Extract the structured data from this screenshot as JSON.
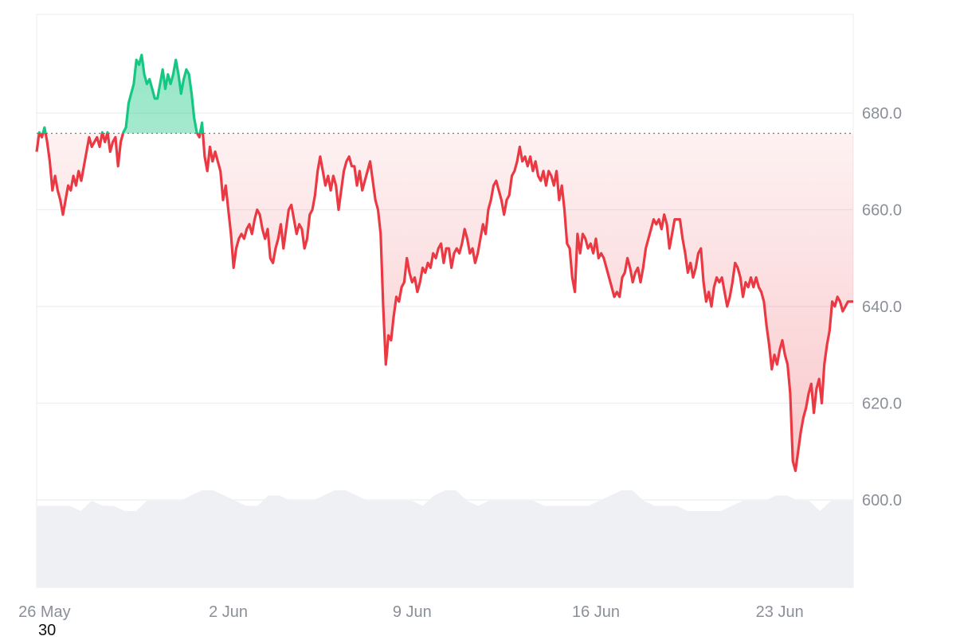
{
  "colors": {
    "up": "#16c784",
    "down": "#ea3943",
    "up_fill": "#16c784",
    "down_fill": "#ea3943",
    "grid": "#eceef1",
    "volume": "#eef0f3",
    "baseline": "#777777",
    "axis_text": "#8a8f98"
  },
  "footer_text": "30",
  "chart_data": {
    "type": "line",
    "ylim": [
      582,
      702
    ],
    "baseline": 675.8,
    "grid": true,
    "yticks": [
      600,
      620,
      640,
      660,
      680
    ],
    "ytick_labels": [
      "600.0",
      "620.0",
      "640.0",
      "660.0",
      "680.0"
    ],
    "xtick_labels": [
      "26 May",
      "2 Jun",
      "9 Jun",
      "16 Jun",
      "23 Jun"
    ],
    "xticks_day": [
      0,
      7,
      14,
      21,
      28
    ],
    "x_range_days": [
      -0.3,
      30.8
    ],
    "series": [
      {
        "points": [
          [
            -0.3,
            672
          ],
          [
            -0.2,
            676
          ],
          [
            -0.1,
            675
          ],
          [
            0,
            677
          ],
          [
            0.1,
            674
          ],
          [
            0.2,
            670
          ],
          [
            0.3,
            664
          ],
          [
            0.4,
            667
          ],
          [
            0.5,
            664
          ],
          [
            0.6,
            662
          ],
          [
            0.7,
            659
          ],
          [
            0.8,
            662
          ],
          [
            0.9,
            665
          ],
          [
            1.0,
            664
          ],
          [
            1.1,
            667
          ],
          [
            1.2,
            665
          ],
          [
            1.3,
            668
          ],
          [
            1.4,
            666
          ],
          [
            1.5,
            669
          ],
          [
            1.6,
            672
          ],
          [
            1.7,
            675
          ],
          [
            1.8,
            673
          ],
          [
            1.9,
            674
          ],
          [
            2.0,
            675
          ],
          [
            2.1,
            673
          ],
          [
            2.2,
            676
          ],
          [
            2.3,
            674
          ],
          [
            2.4,
            676
          ],
          [
            2.5,
            672
          ],
          [
            2.6,
            674
          ],
          [
            2.7,
            675
          ],
          [
            2.8,
            669
          ],
          [
            2.9,
            674
          ],
          [
            3.0,
            676
          ],
          [
            3.1,
            677
          ],
          [
            3.2,
            682
          ],
          [
            3.3,
            684
          ],
          [
            3.4,
            686
          ],
          [
            3.5,
            691
          ],
          [
            3.6,
            690
          ],
          [
            3.7,
            692
          ],
          [
            3.8,
            688
          ],
          [
            3.9,
            686
          ],
          [
            4.0,
            687
          ],
          [
            4.1,
            685
          ],
          [
            4.2,
            683
          ],
          [
            4.3,
            683
          ],
          [
            4.4,
            686
          ],
          [
            4.5,
            689
          ],
          [
            4.6,
            685
          ],
          [
            4.7,
            688
          ],
          [
            4.8,
            686
          ],
          [
            4.9,
            688
          ],
          [
            5.0,
            691
          ],
          [
            5.1,
            688
          ],
          [
            5.2,
            684
          ],
          [
            5.3,
            687
          ],
          [
            5.4,
            689
          ],
          [
            5.5,
            688
          ],
          [
            5.6,
            684
          ],
          [
            5.7,
            679
          ],
          [
            5.8,
            676
          ],
          [
            5.9,
            675
          ],
          [
            6.0,
            678
          ],
          [
            6.1,
            671
          ],
          [
            6.2,
            668
          ],
          [
            6.3,
            673
          ],
          [
            6.4,
            670
          ],
          [
            6.5,
            672
          ],
          [
            6.6,
            670
          ],
          [
            6.7,
            668
          ],
          [
            6.8,
            662
          ],
          [
            6.9,
            665
          ],
          [
            7.0,
            660
          ],
          [
            7.1,
            655
          ],
          [
            7.2,
            648
          ],
          [
            7.3,
            652
          ],
          [
            7.4,
            654
          ],
          [
            7.5,
            655
          ],
          [
            7.6,
            654
          ],
          [
            7.7,
            656
          ],
          [
            7.8,
            657
          ],
          [
            7.9,
            655
          ],
          [
            8.0,
            658
          ],
          [
            8.1,
            660
          ],
          [
            8.2,
            659
          ],
          [
            8.3,
            656
          ],
          [
            8.4,
            654
          ],
          [
            8.5,
            656
          ],
          [
            8.6,
            650
          ],
          [
            8.7,
            649
          ],
          [
            8.8,
            652
          ],
          [
            8.9,
            654
          ],
          [
            9.0,
            657
          ],
          [
            9.1,
            652
          ],
          [
            9.2,
            656
          ],
          [
            9.3,
            660
          ],
          [
            9.4,
            661
          ],
          [
            9.5,
            658
          ],
          [
            9.6,
            655
          ],
          [
            9.7,
            657
          ],
          [
            9.8,
            656
          ],
          [
            9.9,
            652
          ],
          [
            10.0,
            654
          ],
          [
            10.1,
            659
          ],
          [
            10.2,
            660
          ],
          [
            10.3,
            663
          ],
          [
            10.4,
            668
          ],
          [
            10.5,
            671
          ],
          [
            10.6,
            668
          ],
          [
            10.7,
            665
          ],
          [
            10.8,
            667
          ],
          [
            10.9,
            664
          ],
          [
            11.0,
            667
          ],
          [
            11.1,
            665
          ],
          [
            11.2,
            660
          ],
          [
            11.3,
            664
          ],
          [
            11.4,
            668
          ],
          [
            11.5,
            670
          ],
          [
            11.6,
            671
          ],
          [
            11.7,
            669
          ],
          [
            11.8,
            669
          ],
          [
            11.9,
            665
          ],
          [
            12.0,
            668
          ],
          [
            12.1,
            664
          ],
          [
            12.2,
            666
          ],
          [
            12.3,
            668
          ],
          [
            12.4,
            670
          ],
          [
            12.5,
            666
          ],
          [
            12.6,
            662
          ],
          [
            12.7,
            660
          ],
          [
            12.8,
            655
          ],
          [
            12.9,
            640
          ],
          [
            13.0,
            628
          ],
          [
            13.1,
            634
          ],
          [
            13.2,
            633
          ],
          [
            13.3,
            638
          ],
          [
            13.4,
            642
          ],
          [
            13.5,
            641
          ],
          [
            13.6,
            644
          ],
          [
            13.7,
            645
          ],
          [
            13.8,
            650
          ],
          [
            13.9,
            647
          ],
          [
            14.0,
            645
          ],
          [
            14.1,
            646
          ],
          [
            14.2,
            643
          ],
          [
            14.3,
            645
          ],
          [
            14.4,
            648
          ],
          [
            14.5,
            647
          ],
          [
            14.6,
            649
          ],
          [
            14.7,
            648
          ],
          [
            14.8,
            651
          ],
          [
            14.9,
            650
          ],
          [
            15.0,
            652
          ],
          [
            15.1,
            653
          ],
          [
            15.2,
            649
          ],
          [
            15.3,
            652
          ],
          [
            15.4,
            652
          ],
          [
            15.5,
            648
          ],
          [
            15.6,
            651
          ],
          [
            15.7,
            652
          ],
          [
            15.8,
            651
          ],
          [
            15.9,
            653
          ],
          [
            16.0,
            656
          ],
          [
            16.1,
            654
          ],
          [
            16.2,
            651
          ],
          [
            16.3,
            652
          ],
          [
            16.4,
            649
          ],
          [
            16.5,
            651
          ],
          [
            16.6,
            654
          ],
          [
            16.7,
            657
          ],
          [
            16.8,
            655
          ],
          [
            16.9,
            660
          ],
          [
            17.0,
            662
          ],
          [
            17.1,
            665
          ],
          [
            17.2,
            666
          ],
          [
            17.3,
            664
          ],
          [
            17.4,
            662
          ],
          [
            17.5,
            659
          ],
          [
            17.6,
            662
          ],
          [
            17.7,
            663
          ],
          [
            17.8,
            667
          ],
          [
            17.9,
            668
          ],
          [
            18.0,
            670
          ],
          [
            18.1,
            673
          ],
          [
            18.2,
            670
          ],
          [
            18.3,
            671
          ],
          [
            18.4,
            669
          ],
          [
            18.5,
            671
          ],
          [
            18.6,
            668
          ],
          [
            18.7,
            670
          ],
          [
            18.8,
            667
          ],
          [
            18.9,
            666
          ],
          [
            19.0,
            668
          ],
          [
            19.1,
            665
          ],
          [
            19.2,
            668
          ],
          [
            19.3,
            667
          ],
          [
            19.4,
            665
          ],
          [
            19.5,
            668
          ],
          [
            19.6,
            662
          ],
          [
            19.7,
            665
          ],
          [
            19.8,
            660
          ],
          [
            19.9,
            653
          ],
          [
            20.0,
            652
          ],
          [
            20.1,
            646
          ],
          [
            20.2,
            643
          ],
          [
            20.3,
            655
          ],
          [
            20.4,
            651
          ],
          [
            20.5,
            655
          ],
          [
            20.6,
            654
          ],
          [
            20.7,
            652
          ],
          [
            20.8,
            653
          ],
          [
            20.9,
            651
          ],
          [
            21.0,
            654
          ],
          [
            21.1,
            650
          ],
          [
            21.2,
            651
          ],
          [
            21.3,
            650
          ],
          [
            21.4,
            648
          ],
          [
            21.5,
            646
          ],
          [
            21.6,
            644
          ],
          [
            21.7,
            642
          ],
          [
            21.8,
            643
          ],
          [
            21.9,
            642
          ],
          [
            22.0,
            646
          ],
          [
            22.1,
            647
          ],
          [
            22.2,
            650
          ],
          [
            22.3,
            648
          ],
          [
            22.4,
            645
          ],
          [
            22.5,
            647
          ],
          [
            22.6,
            648
          ],
          [
            22.7,
            645
          ],
          [
            22.8,
            648
          ],
          [
            22.9,
            652
          ],
          [
            23.0,
            654
          ],
          [
            23.1,
            656
          ],
          [
            23.2,
            658
          ],
          [
            23.3,
            657
          ],
          [
            23.4,
            658
          ],
          [
            23.5,
            656
          ],
          [
            23.6,
            659
          ],
          [
            23.7,
            657
          ],
          [
            23.8,
            652
          ],
          [
            23.9,
            655
          ],
          [
            24.0,
            658
          ],
          [
            24.1,
            658
          ],
          [
            24.2,
            658
          ],
          [
            24.3,
            654
          ],
          [
            24.4,
            651
          ],
          [
            24.5,
            647
          ],
          [
            24.6,
            649
          ],
          [
            24.7,
            646
          ],
          [
            24.8,
            648
          ],
          [
            24.9,
            651
          ],
          [
            25.0,
            652
          ],
          [
            25.1,
            645
          ],
          [
            25.2,
            641
          ],
          [
            25.3,
            643
          ],
          [
            25.4,
            640
          ],
          [
            25.5,
            644
          ],
          [
            25.6,
            646
          ],
          [
            25.7,
            645
          ],
          [
            25.8,
            646
          ],
          [
            25.9,
            643
          ],
          [
            26.0,
            640
          ],
          [
            26.1,
            642
          ],
          [
            26.2,
            645
          ],
          [
            26.3,
            649
          ],
          [
            26.4,
            648
          ],
          [
            26.5,
            646
          ],
          [
            26.6,
            642
          ],
          [
            26.7,
            645
          ],
          [
            26.8,
            644
          ],
          [
            26.9,
            646
          ],
          [
            27.0,
            644
          ],
          [
            27.1,
            646
          ],
          [
            27.2,
            644
          ],
          [
            27.3,
            643
          ],
          [
            27.4,
            641
          ],
          [
            27.5,
            636
          ],
          [
            27.6,
            632
          ],
          [
            27.7,
            627
          ],
          [
            27.8,
            630
          ],
          [
            27.9,
            628
          ],
          [
            28.0,
            631
          ],
          [
            28.1,
            633
          ],
          [
            28.2,
            630
          ],
          [
            28.3,
            628
          ],
          [
            28.4,
            622
          ],
          [
            28.5,
            608
          ],
          [
            28.6,
            606
          ],
          [
            28.7,
            610
          ],
          [
            28.8,
            614
          ],
          [
            28.9,
            617
          ],
          [
            29.0,
            619
          ],
          [
            29.1,
            622
          ],
          [
            29.2,
            624
          ],
          [
            29.3,
            618
          ],
          [
            29.4,
            623
          ],
          [
            29.5,
            625
          ],
          [
            29.6,
            620
          ],
          [
            29.7,
            628
          ],
          [
            29.8,
            632
          ],
          [
            29.9,
            635
          ],
          [
            30.0,
            641
          ],
          [
            30.1,
            640
          ],
          [
            30.2,
            642
          ],
          [
            30.3,
            641
          ],
          [
            30.4,
            639
          ],
          [
            30.5,
            640
          ],
          [
            30.6,
            641
          ],
          [
            30.7,
            641
          ],
          [
            30.8,
            641
          ]
        ]
      }
    ],
    "volume": [
      5,
      5,
      5,
      5,
      4,
      6,
      5,
      5,
      4,
      4,
      6,
      6,
      6,
      6,
      7,
      8,
      8,
      7,
      6,
      5,
      5,
      7,
      7,
      6,
      6,
      6,
      7,
      8,
      8,
      7,
      6,
      6,
      6,
      6,
      6,
      5,
      7,
      8,
      8,
      6,
      5,
      6,
      6,
      6,
      6,
      6,
      5,
      5,
      5,
      5,
      5,
      6,
      7,
      8,
      8,
      6,
      5,
      5,
      5,
      4,
      4,
      4,
      4,
      5,
      6,
      6,
      6,
      7,
      7,
      6,
      6,
      4,
      6,
      6,
      6
    ]
  }
}
